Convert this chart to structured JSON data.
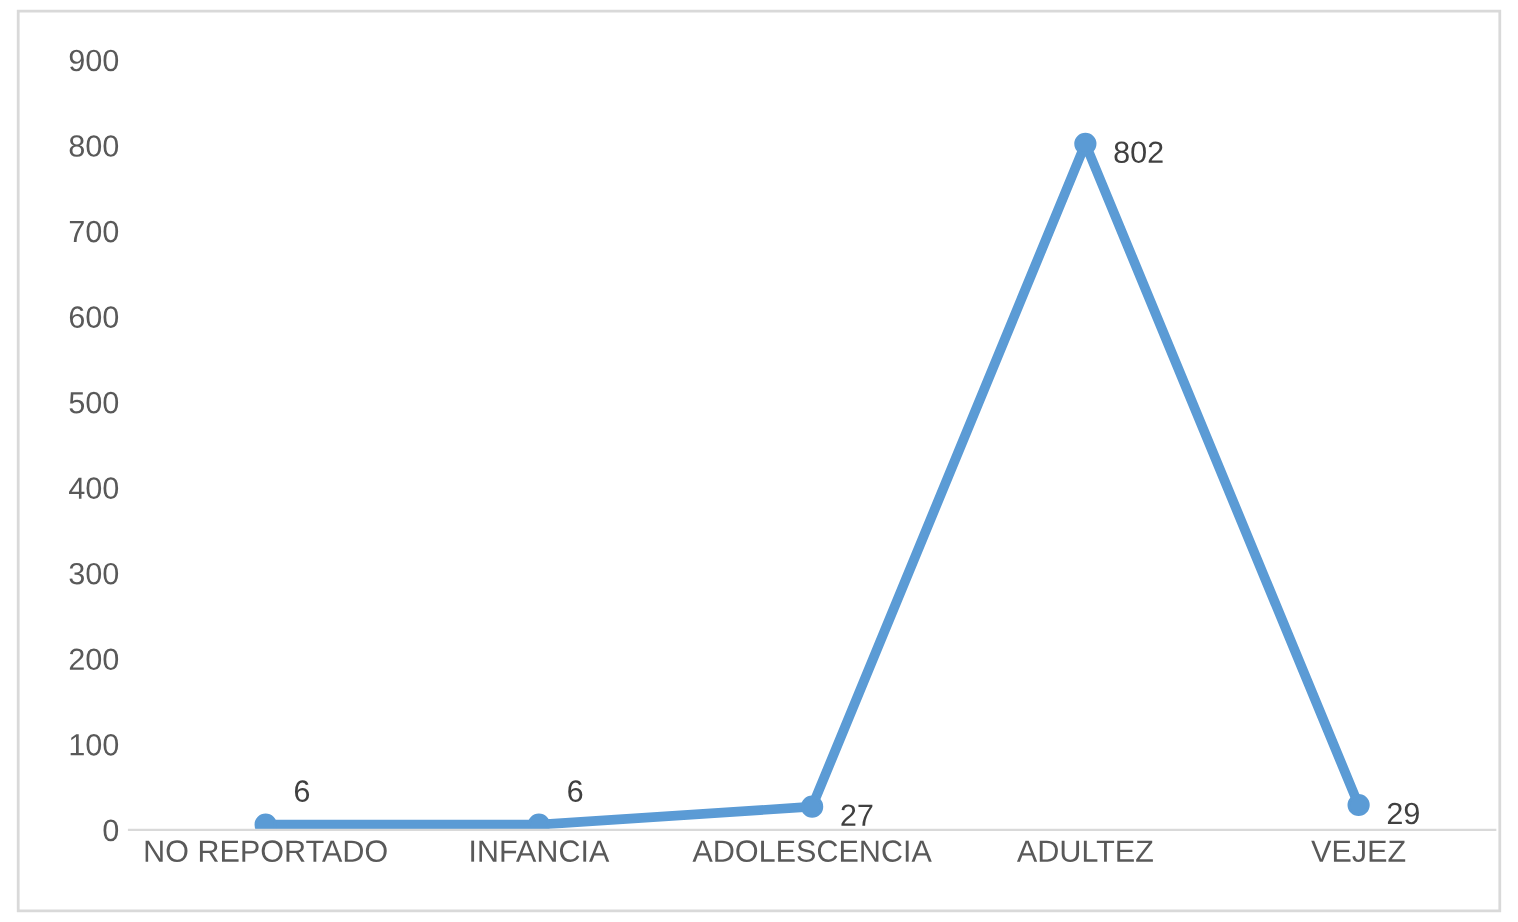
{
  "chart_data": {
    "type": "line",
    "categories": [
      "NO REPORTADO",
      "INFANCIA",
      "ADOLESCENCIA",
      "ADULTEZ",
      "VEJEZ"
    ],
    "series": [
      {
        "color": "#5b9bd5",
        "values": [
          6,
          6,
          27,
          802,
          29
        ]
      }
    ],
    "ylim": [
      0,
      900
    ],
    "yticks": [
      0,
      100,
      200,
      300,
      400,
      500,
      600,
      700,
      800,
      900
    ],
    "grid": false,
    "legend": false,
    "marker": "circle",
    "line_style": "solid",
    "data_labels": true
  }
}
